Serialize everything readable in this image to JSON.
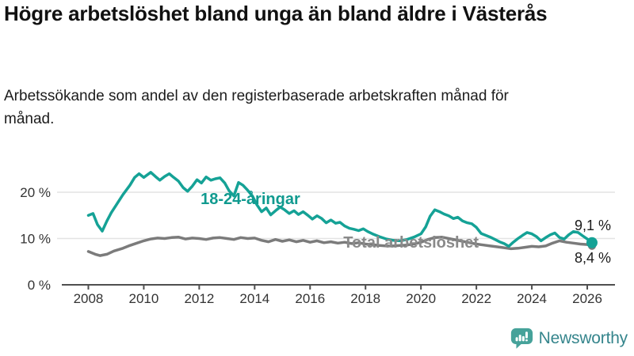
{
  "page": {
    "title": "Högre arbetslöshet bland unga än bland äldre i Västerås",
    "subtitle": "Arbetssökande som andel av den registerbaserade arbetskraften månad för månad."
  },
  "logo": {
    "text": "Newsworthy"
  },
  "colors": {
    "youth": "#15a296",
    "total": "#7b7b7b",
    "youth_label": "#109a8f",
    "total_label": "#8a8a8a",
    "grid": "#e3e3e3",
    "axis": "#4f4f4f",
    "tick_text": "#333333",
    "value_text": "#1a1a1a",
    "logo_icon": "#46a29a",
    "logo_text": "#35858c"
  },
  "chart_data": {
    "type": "line",
    "title": "Högre arbetslöshet bland unga än bland äldre i Västerås",
    "xlabel": "",
    "ylabel": "",
    "grid": "horizontal",
    "legend_position": "inline-labels",
    "xlim": [
      2007.1,
      2027.0
    ],
    "ylim": [
      0,
      28.2
    ],
    "x_ticks": [
      {
        "v": 2008,
        "label": "2008"
      },
      {
        "v": 2010,
        "label": "2010"
      },
      {
        "v": 2012,
        "label": "2012"
      },
      {
        "v": 2014,
        "label": "2014"
      },
      {
        "v": 2016,
        "label": "2016"
      },
      {
        "v": 2018,
        "label": "2018"
      },
      {
        "v": 2020,
        "label": "2020"
      },
      {
        "v": 2022,
        "label": "2022"
      },
      {
        "v": 2024,
        "label": "2024"
      },
      {
        "v": 2026,
        "label": "2026"
      }
    ],
    "y_ticks": [
      {
        "v": 0,
        "label": "0 %"
      },
      {
        "v": 10,
        "label": "10 %"
      },
      {
        "v": 20,
        "label": "20 %"
      }
    ],
    "series": [
      {
        "id": "youth",
        "name": "18-24-åringar",
        "color": "#15a296",
        "label_color": "#109a8f",
        "line_label": {
          "text": "18-24-åringar",
          "year": 2012.05,
          "value": 18.6
        },
        "end_label": {
          "text": "9,1 %",
          "side": "above"
        },
        "points": [
          [
            2008.0,
            15.0
          ],
          [
            2008.17,
            15.4
          ],
          [
            2008.33,
            13.0
          ],
          [
            2008.5,
            11.6
          ],
          [
            2008.67,
            13.8
          ],
          [
            2008.83,
            15.6
          ],
          [
            2009.0,
            17.2
          ],
          [
            2009.25,
            19.5
          ],
          [
            2009.5,
            21.5
          ],
          [
            2009.67,
            23.2
          ],
          [
            2009.83,
            24.0
          ],
          [
            2010.0,
            23.2
          ],
          [
            2010.25,
            24.3
          ],
          [
            2010.42,
            23.4
          ],
          [
            2010.58,
            22.6
          ],
          [
            2010.75,
            23.4
          ],
          [
            2010.92,
            24.0
          ],
          [
            2011.08,
            23.2
          ],
          [
            2011.25,
            22.4
          ],
          [
            2011.42,
            21.0
          ],
          [
            2011.58,
            20.2
          ],
          [
            2011.75,
            21.3
          ],
          [
            2011.92,
            22.7
          ],
          [
            2012.08,
            22.0
          ],
          [
            2012.25,
            23.3
          ],
          [
            2012.42,
            22.6
          ],
          [
            2012.58,
            22.9
          ],
          [
            2012.75,
            23.1
          ],
          [
            2012.92,
            22.0
          ],
          [
            2013.08,
            20.3
          ],
          [
            2013.25,
            19.2
          ],
          [
            2013.42,
            22.1
          ],
          [
            2013.58,
            21.5
          ],
          [
            2013.75,
            20.4
          ],
          [
            2013.92,
            19.2
          ],
          [
            2014.08,
            17.3
          ],
          [
            2014.25,
            15.8
          ],
          [
            2014.42,
            16.6
          ],
          [
            2014.58,
            15.1
          ],
          [
            2014.75,
            16.0
          ],
          [
            2014.92,
            16.8
          ],
          [
            2015.08,
            16.2
          ],
          [
            2015.25,
            15.4
          ],
          [
            2015.42,
            16.0
          ],
          [
            2015.58,
            15.2
          ],
          [
            2015.75,
            15.8
          ],
          [
            2015.92,
            15.0
          ],
          [
            2016.08,
            14.2
          ],
          [
            2016.25,
            14.9
          ],
          [
            2016.42,
            14.3
          ],
          [
            2016.58,
            13.4
          ],
          [
            2016.75,
            14.0
          ],
          [
            2016.92,
            13.3
          ],
          [
            2017.08,
            13.5
          ],
          [
            2017.25,
            12.7
          ],
          [
            2017.42,
            12.2
          ],
          [
            2017.58,
            12.0
          ],
          [
            2017.75,
            11.7
          ],
          [
            2017.92,
            12.1
          ],
          [
            2018.08,
            11.5
          ],
          [
            2018.25,
            11.0
          ],
          [
            2018.5,
            10.4
          ],
          [
            2018.75,
            9.9
          ],
          [
            2019.0,
            9.6
          ],
          [
            2019.25,
            9.5
          ],
          [
            2019.5,
            9.8
          ],
          [
            2019.75,
            10.3
          ],
          [
            2020.0,
            11.0
          ],
          [
            2020.17,
            12.5
          ],
          [
            2020.33,
            14.8
          ],
          [
            2020.5,
            16.2
          ],
          [
            2020.67,
            15.8
          ],
          [
            2020.83,
            15.3
          ],
          [
            2021.0,
            14.9
          ],
          [
            2021.17,
            14.3
          ],
          [
            2021.33,
            14.6
          ],
          [
            2021.5,
            13.8
          ],
          [
            2021.67,
            13.4
          ],
          [
            2021.83,
            13.2
          ],
          [
            2022.0,
            12.4
          ],
          [
            2022.17,
            11.1
          ],
          [
            2022.33,
            10.7
          ],
          [
            2022.5,
            10.3
          ],
          [
            2022.67,
            9.8
          ],
          [
            2022.83,
            9.3
          ],
          [
            2023.0,
            8.9
          ],
          [
            2023.17,
            8.3
          ],
          [
            2023.33,
            9.2
          ],
          [
            2023.5,
            10.0
          ],
          [
            2023.67,
            10.7
          ],
          [
            2023.83,
            11.3
          ],
          [
            2024.0,
            11.0
          ],
          [
            2024.17,
            10.4
          ],
          [
            2024.33,
            9.5
          ],
          [
            2024.5,
            10.2
          ],
          [
            2024.67,
            10.8
          ],
          [
            2024.83,
            11.2
          ],
          [
            2025.0,
            10.2
          ],
          [
            2025.17,
            9.9
          ],
          [
            2025.33,
            10.8
          ],
          [
            2025.5,
            11.5
          ],
          [
            2025.67,
            11.3
          ],
          [
            2025.83,
            10.6
          ],
          [
            2026.0,
            9.9
          ],
          [
            2026.17,
            9.1
          ]
        ]
      },
      {
        "id": "total",
        "name": "Total arbetslöshet",
        "color": "#7b7b7b",
        "label_color": "#8a8a8a",
        "line_label": {
          "text": "Total arbetslöshet",
          "year": 2017.2,
          "value": 9.2
        },
        "end_label": {
          "text": "8,4 %",
          "side": "below"
        },
        "points": [
          [
            2008.0,
            7.2
          ],
          [
            2008.25,
            6.6
          ],
          [
            2008.42,
            6.3
          ],
          [
            2008.67,
            6.6
          ],
          [
            2008.92,
            7.3
          ],
          [
            2009.25,
            7.9
          ],
          [
            2009.5,
            8.5
          ],
          [
            2009.75,
            9.0
          ],
          [
            2010.0,
            9.5
          ],
          [
            2010.25,
            9.9
          ],
          [
            2010.5,
            10.1
          ],
          [
            2010.75,
            10.0
          ],
          [
            2011.0,
            10.2
          ],
          [
            2011.25,
            10.3
          ],
          [
            2011.5,
            9.9
          ],
          [
            2011.75,
            10.1
          ],
          [
            2012.0,
            10.0
          ],
          [
            2012.25,
            9.8
          ],
          [
            2012.5,
            10.1
          ],
          [
            2012.75,
            10.2
          ],
          [
            2013.0,
            10.0
          ],
          [
            2013.25,
            9.8
          ],
          [
            2013.5,
            10.2
          ],
          [
            2013.75,
            10.0
          ],
          [
            2014.0,
            10.1
          ],
          [
            2014.25,
            9.6
          ],
          [
            2014.5,
            9.3
          ],
          [
            2014.75,
            9.8
          ],
          [
            2015.0,
            9.4
          ],
          [
            2015.25,
            9.7
          ],
          [
            2015.5,
            9.3
          ],
          [
            2015.75,
            9.6
          ],
          [
            2016.0,
            9.2
          ],
          [
            2016.25,
            9.5
          ],
          [
            2016.5,
            9.1
          ],
          [
            2016.75,
            9.3
          ],
          [
            2017.0,
            9.0
          ],
          [
            2017.25,
            9.2
          ],
          [
            2017.5,
            8.9
          ],
          [
            2017.75,
            9.1
          ],
          [
            2018.0,
            8.8
          ],
          [
            2018.25,
            8.7
          ],
          [
            2018.5,
            8.5
          ],
          [
            2018.75,
            8.4
          ],
          [
            2019.0,
            8.4
          ],
          [
            2019.25,
            8.5
          ],
          [
            2019.5,
            8.6
          ],
          [
            2019.75,
            8.8
          ],
          [
            2020.0,
            9.2
          ],
          [
            2020.25,
            9.8
          ],
          [
            2020.5,
            10.2
          ],
          [
            2020.75,
            10.3
          ],
          [
            2021.0,
            10.0
          ],
          [
            2021.25,
            9.7
          ],
          [
            2021.5,
            9.4
          ],
          [
            2021.75,
            9.1
          ],
          [
            2022.0,
            8.8
          ],
          [
            2022.25,
            8.6
          ],
          [
            2022.5,
            8.4
          ],
          [
            2022.75,
            8.2
          ],
          [
            2023.0,
            8.0
          ],
          [
            2023.25,
            7.8
          ],
          [
            2023.5,
            7.9
          ],
          [
            2023.75,
            8.1
          ],
          [
            2024.0,
            8.3
          ],
          [
            2024.25,
            8.2
          ],
          [
            2024.5,
            8.4
          ],
          [
            2024.75,
            9.0
          ],
          [
            2025.0,
            9.5
          ],
          [
            2025.25,
            9.2
          ],
          [
            2025.5,
            9.0
          ],
          [
            2025.75,
            8.8
          ],
          [
            2026.0,
            8.7
          ],
          [
            2026.17,
            8.4
          ]
        ]
      }
    ]
  }
}
